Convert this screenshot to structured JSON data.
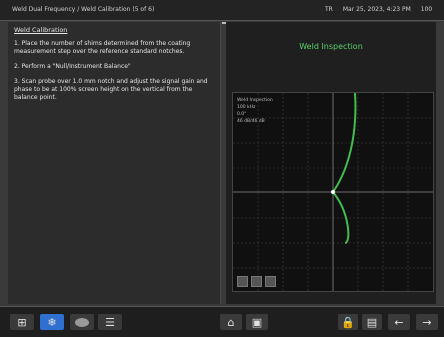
{
  "titlebar": {
    "breadcrumb": "Weld Dual Frequency / Weld Calibration (5 of 6)",
    "status_left": "TR",
    "status_date": "Mar 25, 2023, 4:23 PM",
    "status_right": "100"
  },
  "instructions": {
    "heading": "Weld Calibration",
    "steps": [
      "1. Place the number of shims determined from the coating measurement step over the reference standard notches.",
      "2. Perform a \"Null/Instrument Balance\"",
      "3. Scan probe over 1.0 mm notch and adjust the signal gain and phase to be at 100% screen height on the vertical from the balance point."
    ]
  },
  "panel": {
    "title": "Weld Inspection"
  },
  "scope": {
    "readout": [
      "Weld Inspection",
      "100 kHz",
      "0.0°",
      "46 dB/46 dB"
    ]
  },
  "colors": {
    "accent": "#57d067",
    "trace": "#3fbf50"
  },
  "toolbar": {
    "icons": [
      "grid-icon",
      "snowflake-icon",
      "oval-icon",
      "menu-icon",
      "home-icon",
      "display-icon",
      "lock-icon",
      "options-icon",
      "back-icon",
      "next-icon"
    ]
  }
}
